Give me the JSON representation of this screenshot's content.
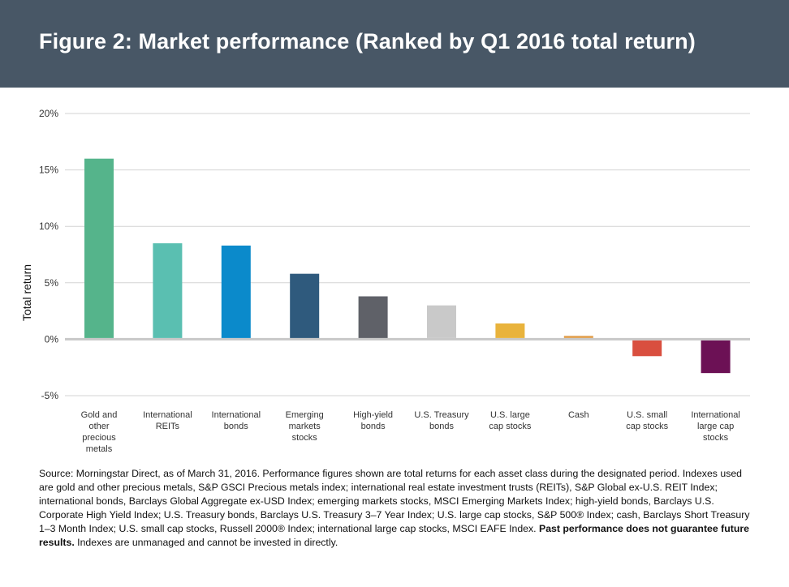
{
  "header": {
    "title": "Figure 2: Market performance (Ranked by Q1 2016 total return)"
  },
  "chart_data": {
    "type": "bar",
    "title": "Figure 2: Market performance (Ranked by Q1 2016 total return)",
    "ylabel": "Total return",
    "xlabel": "",
    "ylim": [
      -5,
      20
    ],
    "yticks": [
      20,
      15,
      10,
      5,
      0,
      -5
    ],
    "ytick_labels": [
      "20%",
      "15%",
      "10%",
      "5%",
      "0%",
      "-5%"
    ],
    "grid": true,
    "categories": [
      [
        "Gold and",
        "other",
        "precious",
        "metals"
      ],
      [
        "International",
        "REITs"
      ],
      [
        "International",
        "bonds"
      ],
      [
        "Emerging",
        "markets",
        "stocks"
      ],
      [
        "High-yield",
        "bonds"
      ],
      [
        "U.S. Treasury",
        "bonds"
      ],
      [
        "U.S. large",
        "cap stocks"
      ],
      [
        "Cash"
      ],
      [
        "U.S. small",
        "cap stocks"
      ],
      [
        "International",
        "large cap",
        "stocks"
      ]
    ],
    "values": [
      16.0,
      8.5,
      8.3,
      5.8,
      3.8,
      3.0,
      1.4,
      0.3,
      -1.5,
      -3.0
    ],
    "colors": [
      "#55b48b",
      "#5abfb1",
      "#0b8acb",
      "#2f5a7d",
      "#5f6168",
      "#c9c9c9",
      "#e9b33c",
      "#e1a04f",
      "#d94f3f",
      "#6c1155"
    ]
  },
  "source": {
    "text": "Source: Morningstar Direct, as of March 31, 2016. Performance figures shown are total returns for each asset class during the designated period. Indexes used are gold and other precious metals, S&P GSCI Precious metals index; international real estate investment trusts (REITs), S&P Global ex-U.S. REIT Index; international bonds, Barclays Global Aggregate ex-USD Index; emerging markets stocks, MSCI Emerging Markets Index; high-yield bonds, Barclays U.S. Corporate High Yield Index; U.S. Treasury bonds, Barclays U.S. Treasury 3–7 Year Index; U.S. large cap stocks, S&P 500® Index; cash, Barclays Short Treasury 1–3 Month Index; U.S. small cap stocks, Russell 2000® Index; international large cap stocks, MSCI EAFE Index. ",
    "bold_text": "Past performance does not guarantee future results.",
    "tail_text": " Indexes are unmanaged and cannot be invested in directly."
  }
}
